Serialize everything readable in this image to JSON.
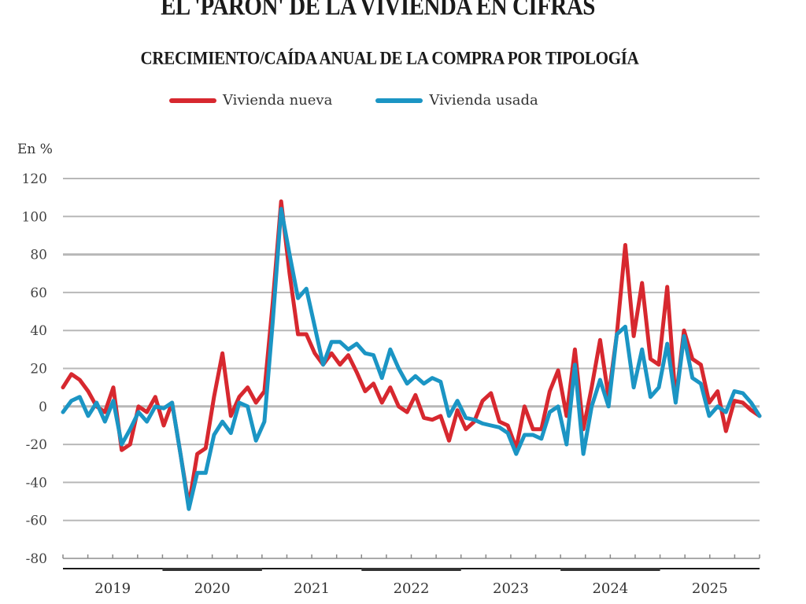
{
  "title": "EL 'PARÓN' DE LA VIVIENDA EN CIFRAS",
  "subtitle": "CRECIMIENTO/CAÍDA ANUAL DE LA COMPRA POR TIPOLOGÍA",
  "chart_data": {
    "type": "line",
    "title": "CRECIMIENTO/CAÍDA ANUAL DE LA COMPRA POR TIPOLOGÍA",
    "ylabel": "En %",
    "xlabel": "",
    "ylim": [
      -80,
      120
    ],
    "yticks": [
      120,
      100,
      80,
      60,
      40,
      20,
      0,
      -20,
      -40,
      -60,
      -80
    ],
    "xlim": [
      2019,
      2026
    ],
    "xtick_labels": [
      "2019",
      "2020",
      "2021",
      "2022",
      "2023",
      "2024",
      "2025"
    ],
    "grid": true,
    "legend_position": "top-center",
    "x_unit": "month (Jan 2019 – Dec 2025)",
    "series": [
      {
        "name": "Vivienda nueva",
        "color": "#d7282f",
        "values": [
          10,
          17,
          14,
          8,
          0,
          -3,
          10,
          -23,
          -20,
          0,
          -3,
          5,
          -10,
          2,
          -25,
          -52,
          -25,
          -22,
          5,
          28,
          -5,
          5,
          10,
          2,
          8,
          55,
          108,
          70,
          38,
          38,
          28,
          22,
          28,
          22,
          27,
          18,
          8,
          12,
          2,
          10,
          0,
          -3,
          6,
          -6,
          -7,
          -5,
          -18,
          -2,
          -12,
          -8,
          3,
          7,
          -8,
          -10,
          -22,
          0,
          -12,
          -12,
          8,
          19,
          -5,
          30,
          -12,
          10,
          35,
          5,
          38,
          85,
          37,
          65,
          25,
          22,
          63,
          3,
          40,
          25,
          22,
          2,
          8,
          -13,
          3,
          2,
          -2,
          -5
        ]
      },
      {
        "name": "Vivienda usada",
        "color": "#1b95c4",
        "values": [
          -3,
          3,
          5,
          -5,
          2,
          -8,
          3,
          -20,
          -12,
          -3,
          -8,
          0,
          -1,
          2,
          -25,
          -54,
          -35,
          -35,
          -15,
          -8,
          -14,
          2,
          0,
          -18,
          -8,
          45,
          104,
          80,
          57,
          62,
          42,
          22,
          34,
          34,
          30,
          33,
          28,
          27,
          15,
          30,
          20,
          12,
          16,
          12,
          15,
          13,
          -5,
          3,
          -6,
          -7,
          -9,
          -10,
          -11,
          -14,
          -25,
          -15,
          -15,
          -17,
          -3,
          0,
          -20,
          22,
          -25,
          0,
          14,
          0,
          38,
          42,
          10,
          30,
          5,
          10,
          33,
          2,
          37,
          15,
          12,
          -5,
          0,
          -3,
          8,
          7,
          2,
          -5
        ]
      }
    ]
  },
  "legend": {
    "items": [
      {
        "label": "Vivienda nueva",
        "color": "#d7282f"
      },
      {
        "label": "Vivienda usada",
        "color": "#1b95c4"
      }
    ]
  },
  "colors": {
    "grid": "#b8b8b8",
    "axis": "#1a1a1a",
    "year_band_dark": "#333333"
  }
}
